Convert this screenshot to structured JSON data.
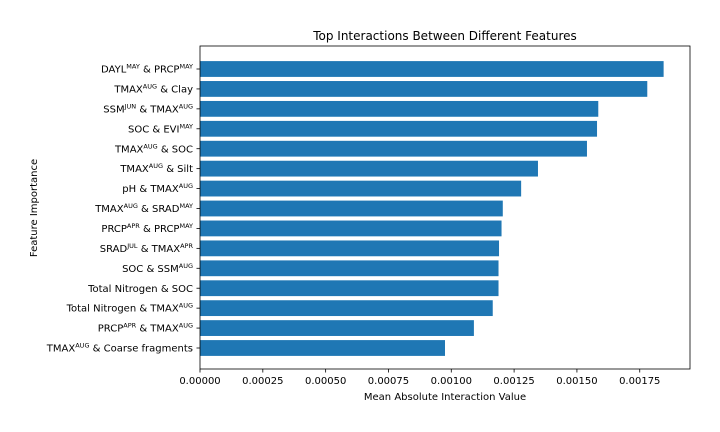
{
  "chart_data": {
    "type": "bar",
    "orientation": "horizontal",
    "title": "Top Interactions Between Different Features",
    "xlabel": "Mean Absolute Interaction Value",
    "ylabel": "Feature Importance",
    "xlim": [
      0,
      0.00195
    ],
    "xticks": [
      "0.00000",
      "0.00025",
      "0.00050",
      "0.00075",
      "0.00100",
      "0.00125",
      "0.00150",
      "0.00175"
    ],
    "xtick_values": [
      0,
      0.00025,
      0.0005,
      0.00075,
      0.001,
      0.00125,
      0.0015,
      0.00175
    ],
    "bar_color": "#1f77b4",
    "grid": false,
    "categories": [
      {
        "segments": [
          {
            "t": "DAYL"
          },
          {
            "t": "MAY",
            "sup": true
          },
          {
            "t": " & PRCP"
          },
          {
            "t": "MAY",
            "sup": true
          }
        ]
      },
      {
        "segments": [
          {
            "t": "TMAX"
          },
          {
            "t": "AUG",
            "sup": true
          },
          {
            "t": " & Clay"
          }
        ]
      },
      {
        "segments": [
          {
            "t": "SSM"
          },
          {
            "t": "JUN",
            "sup": true
          },
          {
            "t": " & TMAX"
          },
          {
            "t": "AUG",
            "sup": true
          }
        ]
      },
      {
        "segments": [
          {
            "t": "SOC & EVI"
          },
          {
            "t": "MAY",
            "sup": true
          }
        ]
      },
      {
        "segments": [
          {
            "t": "TMAX"
          },
          {
            "t": "AUG",
            "sup": true
          },
          {
            "t": " & SOC"
          }
        ]
      },
      {
        "segments": [
          {
            "t": "TMAX"
          },
          {
            "t": "AUG",
            "sup": true
          },
          {
            "t": " & Silt"
          }
        ]
      },
      {
        "segments": [
          {
            "t": "pH & TMAX"
          },
          {
            "t": "AUG",
            "sup": true
          }
        ]
      },
      {
        "segments": [
          {
            "t": "TMAX"
          },
          {
            "t": "AUG",
            "sup": true
          },
          {
            "t": " & SRAD"
          },
          {
            "t": "MAY",
            "sup": true
          }
        ]
      },
      {
        "segments": [
          {
            "t": "PRCP"
          },
          {
            "t": "APR",
            "sup": true
          },
          {
            "t": " & PRCP"
          },
          {
            "t": "MAY",
            "sup": true
          }
        ]
      },
      {
        "segments": [
          {
            "t": "SRAD"
          },
          {
            "t": "JUL",
            "sup": true
          },
          {
            "t": " & TMAX"
          },
          {
            "t": "APR",
            "sup": true
          }
        ]
      },
      {
        "segments": [
          {
            "t": "SOC & SSM"
          },
          {
            "t": "AUG",
            "sup": true
          }
        ]
      },
      {
        "segments": [
          {
            "t": "Total Nitrogen & SOC"
          }
        ]
      },
      {
        "segments": [
          {
            "t": "Total Nitrogen & TMAX"
          },
          {
            "t": "AUG",
            "sup": true
          }
        ]
      },
      {
        "segments": [
          {
            "t": "PRCP"
          },
          {
            "t": "APR",
            "sup": true
          },
          {
            "t": " & TMAX"
          },
          {
            "t": "AUG",
            "sup": true
          }
        ]
      },
      {
        "segments": [
          {
            "t": "TMAX"
          },
          {
            "t": "AUG",
            "sup": true
          },
          {
            "t": " & Coarse fragments"
          }
        ]
      }
    ],
    "values": [
      0.001845,
      0.00178,
      0.001585,
      0.00158,
      0.00154,
      0.001345,
      0.001278,
      0.001205,
      0.0012,
      0.00119,
      0.001188,
      0.001188,
      0.001165,
      0.00109,
      0.000975
    ]
  }
}
